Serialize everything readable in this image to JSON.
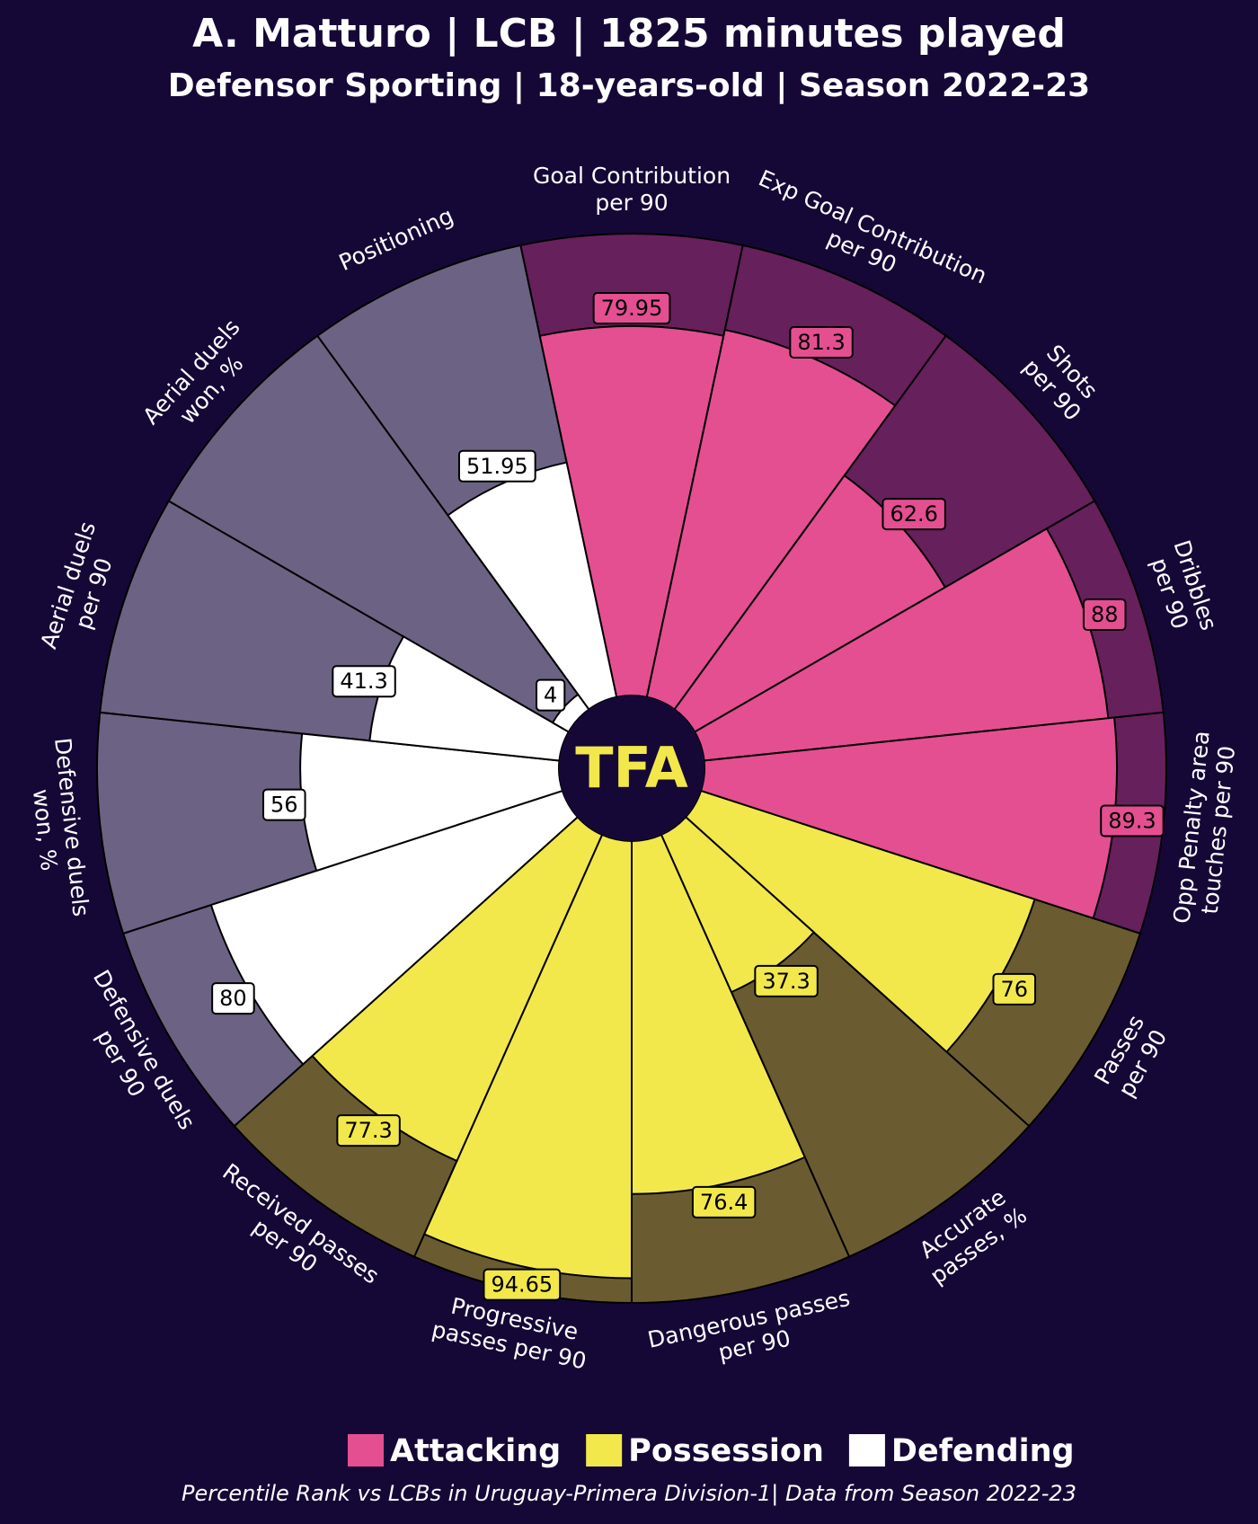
{
  "chart_data": {
    "type": "pizza",
    "title": "A. Matturo | LCB | 1825 minutes played",
    "subtitle": "Defensor Sporting | 18-years-old | Season 2022-23",
    "categories": [
      [
        "Goal Contribution",
        "per 90"
      ],
      [
        "Exp Goal Contribution",
        "per 90"
      ],
      [
        "Shots",
        "per 90"
      ],
      [
        "Dribbles",
        "per 90"
      ],
      [
        "Opp Penalty area",
        "touches per 90"
      ],
      [
        "Passes",
        "per 90"
      ],
      [
        "Accurate",
        "passes, %"
      ],
      [
        "Dangerous passes",
        "per 90"
      ],
      [
        "Progressive",
        "passes per 90"
      ],
      [
        "Received passes",
        "per 90"
      ],
      [
        "Defensive duels",
        "per 90"
      ],
      [
        "Defensive duels",
        "won, %"
      ],
      [
        "Aerial duels",
        "per 90"
      ],
      [
        "Aerial duels",
        "won, %"
      ],
      [
        "Positioning"
      ]
    ],
    "values": [
      79.95,
      81.3,
      62.6,
      88.0,
      89.3,
      76.0,
      37.3,
      76.4,
      94.65,
      77.3,
      80.0,
      56.0,
      41.3,
      4.0,
      51.95
    ],
    "colors": [
      "#e44f91",
      "#e44f91",
      "#e44f91",
      "#e44f91",
      "#e44f91",
      "#f2e84b",
      "#f2e84b",
      "#f2e84b",
      "#f2e84b",
      "#f2e84b",
      "#ffffff",
      "#ffffff",
      "#ffffff",
      "#ffffff",
      "#ffffff"
    ],
    "background_colors": [
      "#66205c",
      "#66205c",
      "#66205c",
      "#66205c",
      "#66205c",
      "#6a5c30",
      "#6a5c30",
      "#6a5c30",
      "#6a5c30",
      "#6a5c30",
      "#6c6283",
      "#6c6283",
      "#6c6283",
      "#6c6283",
      "#6c6283"
    ],
    "rlim": [
      0,
      100
    ],
    "legend": [
      {
        "name": "Attacking",
        "color": "#e44f91"
      },
      {
        "name": "Possession",
        "color": "#f2e84b"
      },
      {
        "name": "Defending",
        "color": "#ffffff"
      }
    ],
    "logo": "TFA",
    "note": "Percentile Rank vs LCBs in Uruguay-Primera Division-1| Data from Season 2022-23"
  }
}
